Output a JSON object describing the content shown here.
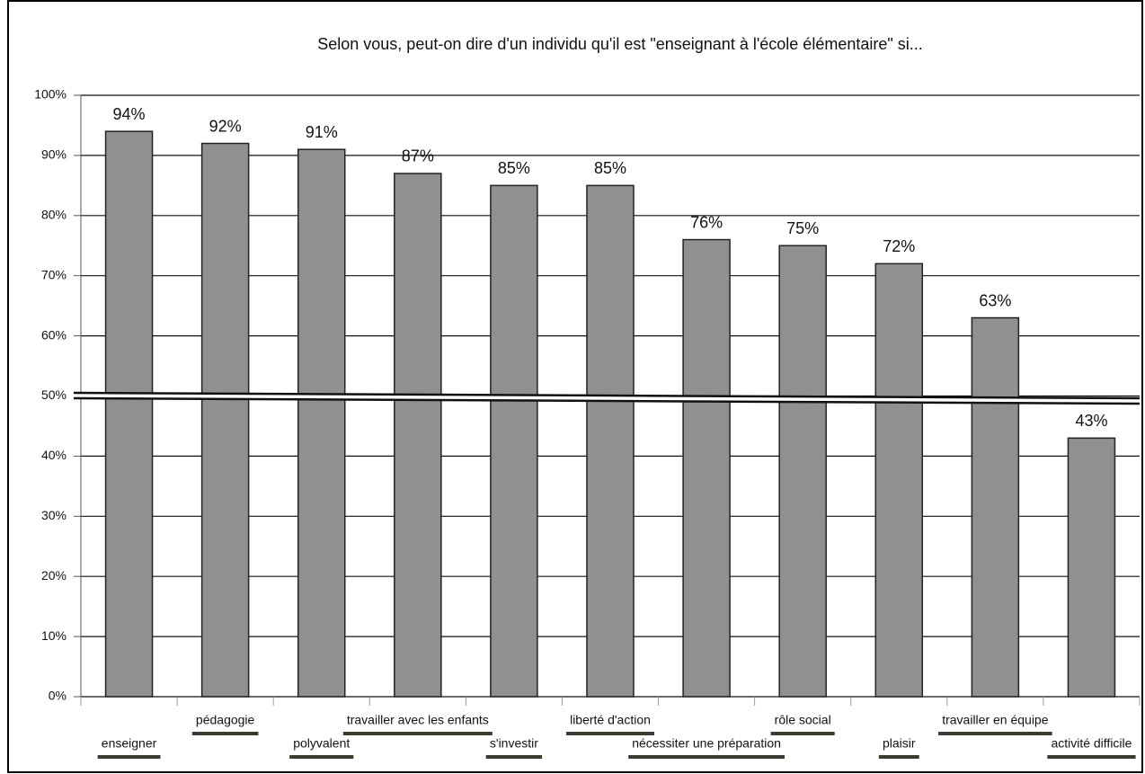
{
  "chart_data": {
    "type": "bar",
    "title": "Selon vous, peut-on dire d'un individu qu'il est \"enseignant à l'école élémentaire\" si...",
    "categories": [
      "enseigner",
      "pédagogie",
      "polyvalent",
      "travailler avec les enfants",
      "s'investir",
      "liberté d'action",
      "nécessiter une préparation",
      "rôle social",
      "plaisir",
      "travailler en équipe",
      "activité difficile"
    ],
    "values": [
      94,
      92,
      91,
      87,
      85,
      85,
      76,
      75,
      72,
      63,
      43
    ],
    "value_labels": [
      "94%",
      "92%",
      "91%",
      "87%",
      "85%",
      "85%",
      "76%",
      "75%",
      "72%",
      "63%",
      "43%"
    ],
    "color": "#909090",
    "ylim": [
      0,
      100
    ],
    "yticks": [
      {
        "value": 0,
        "label": "0%"
      },
      {
        "value": 10,
        "label": "10%"
      },
      {
        "value": 20,
        "label": "20%"
      },
      {
        "value": 30,
        "label": "30%"
      },
      {
        "value": 40,
        "label": "40%"
      },
      {
        "value": 50,
        "label": "50%"
      },
      {
        "value": 60,
        "label": "60%"
      },
      {
        "value": 70,
        "label": "70%"
      },
      {
        "value": 80,
        "label": "80%"
      },
      {
        "value": 90,
        "label": "90%"
      },
      {
        "value": 100,
        "label": "100%"
      }
    ],
    "grid": true
  }
}
